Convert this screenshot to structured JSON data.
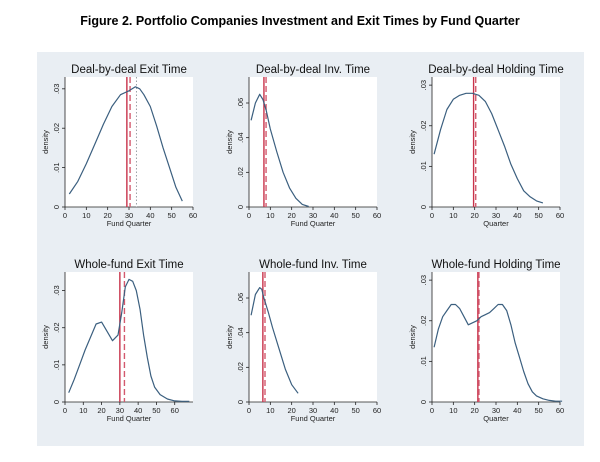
{
  "figure": {
    "title": "Figure 2. Portfolio Companies Investment and Exit Times by Fund Quarter",
    "panel_background": "#e9eef3",
    "curve_color": "#3b5f7f",
    "vline_solid_color": "#c8324a",
    "vline_dashed_color": "#d35a6e",
    "vline_dotted_color": "#9aa0a6"
  },
  "chart_data": [
    {
      "type": "line",
      "title": "Deal-by-deal Exit Time",
      "xlabel": "Fund Quarter",
      "ylabel": "density",
      "xlim": [
        0,
        60
      ],
      "ylim": [
        0,
        0.033
      ],
      "xticks": [
        0,
        10,
        20,
        30,
        40,
        50,
        60
      ],
      "xtick_labels": [
        "0",
        "10",
        "20",
        "30",
        "40",
        "50",
        "60"
      ],
      "yticks": [
        0,
        0.01,
        0.02,
        0.03
      ],
      "ytick_labels": [
        "0",
        ".01",
        ".02",
        ".03"
      ],
      "x": [
        2,
        6,
        10,
        14,
        18,
        22,
        26,
        30,
        33,
        35,
        37,
        40,
        43,
        46,
        49,
        52,
        55
      ],
      "y": [
        0.0033,
        0.0065,
        0.011,
        0.016,
        0.021,
        0.0255,
        0.0285,
        0.0295,
        0.0305,
        0.03,
        0.0285,
        0.0255,
        0.0205,
        0.015,
        0.01,
        0.005,
        0.0015
      ],
      "vlines": [
        {
          "x": 29,
          "style": "solid"
        },
        {
          "x": 30.5,
          "style": "dashed"
        },
        {
          "x": 33.5,
          "style": "dotted"
        }
      ],
      "grid": false
    },
    {
      "type": "line",
      "title": "Deal-by-deal Inv. Time",
      "xlabel": "Fund Quarter",
      "ylabel": "density",
      "xlim": [
        0,
        60
      ],
      "ylim": [
        0,
        0.075
      ],
      "xticks": [
        0,
        10,
        20,
        30,
        40,
        50,
        60
      ],
      "xtick_labels": [
        "0",
        "10",
        "20",
        "30",
        "40",
        "50",
        "60"
      ],
      "yticks": [
        0,
        0.02,
        0.04,
        0.06
      ],
      "ytick_labels": [
        "0",
        ".02",
        ".04",
        ".06"
      ],
      "x": [
        1,
        3,
        5,
        6.5,
        8,
        10,
        13,
        16,
        19,
        22,
        25,
        28
      ],
      "y": [
        0.05,
        0.06,
        0.065,
        0.062,
        0.056,
        0.045,
        0.032,
        0.02,
        0.011,
        0.005,
        0.0015,
        0.0003
      ],
      "vlines": [
        {
          "x": 7,
          "style": "solid"
        },
        {
          "x": 8,
          "style": "dashed"
        }
      ],
      "grid": false
    },
    {
      "type": "line",
      "title": "Deal-by-deal Holding Time",
      "xlabel": "Quarter",
      "ylabel": "density",
      "xlim": [
        0,
        60
      ],
      "ylim": [
        0,
        0.032
      ],
      "xticks": [
        0,
        10,
        20,
        30,
        40,
        50,
        60
      ],
      "xtick_labels": [
        "0",
        "10",
        "20",
        "30",
        "40",
        "50",
        "60"
      ],
      "yticks": [
        0,
        0.01,
        0.02,
        0.03
      ],
      "ytick_labels": [
        "0",
        ".01",
        ".02",
        ".03"
      ],
      "x": [
        1,
        4,
        7,
        10,
        13,
        16,
        19,
        22,
        25,
        28,
        31,
        34,
        37,
        40,
        43,
        46,
        49,
        52
      ],
      "y": [
        0.013,
        0.019,
        0.024,
        0.0265,
        0.0275,
        0.028,
        0.028,
        0.0275,
        0.026,
        0.023,
        0.019,
        0.015,
        0.0105,
        0.007,
        0.004,
        0.0025,
        0.0015,
        0.001
      ],
      "vlines": [
        {
          "x": 19.5,
          "style": "solid"
        },
        {
          "x": 20.5,
          "style": "dashed"
        }
      ],
      "grid": false
    },
    {
      "type": "line",
      "title": "Whole-fund Exit Time",
      "xlabel": "Fund Quarter",
      "ylabel": "density",
      "xlim": [
        0,
        70
      ],
      "ylim": [
        0,
        0.035
      ],
      "xticks": [
        0,
        10,
        20,
        30,
        40,
        50,
        60
      ],
      "xtick_labels": [
        "0",
        "10",
        "20",
        "30",
        "40",
        "50",
        "60"
      ],
      "yticks": [
        0,
        0.01,
        0.02,
        0.03
      ],
      "ytick_labels": [
        "0",
        ".01",
        ".02",
        ".03"
      ],
      "x": [
        2,
        5,
        8,
        11,
        14,
        17,
        20,
        23,
        26,
        29,
        31,
        33,
        35,
        37,
        39,
        41,
        43,
        45,
        47,
        49,
        52,
        56,
        60,
        64,
        68
      ],
      "y": [
        0.0025,
        0.006,
        0.01,
        0.014,
        0.0175,
        0.021,
        0.0215,
        0.019,
        0.0165,
        0.018,
        0.024,
        0.031,
        0.033,
        0.0325,
        0.03,
        0.025,
        0.018,
        0.012,
        0.007,
        0.004,
        0.002,
        0.0008,
        0.0003,
        0.0002,
        0.0002
      ],
      "vlines": [
        {
          "x": 30,
          "style": "solid"
        },
        {
          "x": 32.5,
          "style": "dashed"
        }
      ],
      "grid": false
    },
    {
      "type": "line",
      "title": "Whole-fund Inv. Time",
      "xlabel": "Fund Quarter",
      "ylabel": "density",
      "xlim": [
        0,
        60
      ],
      "ylim": [
        0,
        0.075
      ],
      "xticks": [
        0,
        10,
        20,
        30,
        40,
        50,
        60
      ],
      "xtick_labels": [
        "0",
        "10",
        "20",
        "30",
        "40",
        "50",
        "60"
      ],
      "yticks": [
        0,
        0.02,
        0.04,
        0.06
      ],
      "ytick_labels": [
        "0",
        ".02",
        ".04",
        ".06"
      ],
      "x": [
        1,
        3,
        5,
        6,
        7,
        9,
        11,
        14,
        17,
        20,
        23
      ],
      "y": [
        0.05,
        0.062,
        0.066,
        0.065,
        0.06,
        0.052,
        0.043,
        0.031,
        0.019,
        0.01,
        0.005
      ],
      "vlines": [
        {
          "x": 6.5,
          "style": "solid"
        },
        {
          "x": 7.5,
          "style": "dashed"
        }
      ],
      "grid": false
    },
    {
      "type": "line",
      "title": "Whole-fund Holding Time",
      "xlabel": "Quarter",
      "ylabel": "density",
      "xlim": [
        0,
        60
      ],
      "ylim": [
        0,
        0.032
      ],
      "xticks": [
        0,
        10,
        20,
        30,
        40,
        50,
        60
      ],
      "xtick_labels": [
        "0",
        "10",
        "20",
        "30",
        "40",
        "50",
        "60"
      ],
      "yticks": [
        0,
        0.01,
        0.02,
        0.03
      ],
      "ytick_labels": [
        "0",
        ".01",
        ".02",
        ".03"
      ],
      "x": [
        1,
        3,
        5,
        7,
        9,
        11,
        13,
        15,
        17,
        19,
        21,
        23,
        25,
        27,
        29,
        31,
        33,
        35,
        37,
        39,
        41,
        43,
        45,
        47,
        49,
        52,
        55,
        58,
        61
      ],
      "y": [
        0.0135,
        0.018,
        0.021,
        0.0225,
        0.024,
        0.024,
        0.023,
        0.021,
        0.019,
        0.0195,
        0.02,
        0.021,
        0.0215,
        0.022,
        0.023,
        0.024,
        0.024,
        0.0225,
        0.019,
        0.0145,
        0.011,
        0.0075,
        0.0045,
        0.0025,
        0.0015,
        0.0008,
        0.0004,
        0.0002,
        0.0002
      ],
      "vlines": [
        {
          "x": 21.5,
          "style": "solid"
        },
        {
          "x": 22,
          "style": "dashed"
        }
      ],
      "grid": false
    }
  ]
}
